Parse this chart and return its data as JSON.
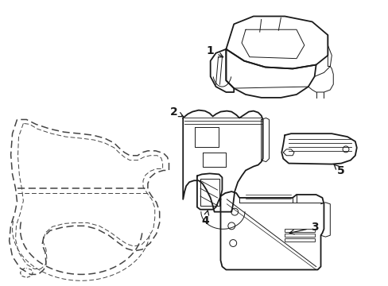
{
  "background_color": "#ffffff",
  "line_color": "#1a1a1a",
  "lw_main": 1.3,
  "lw_thin": 0.7,
  "lw_dash": 1.1,
  "fig_width": 4.89,
  "fig_height": 3.6,
  "dpi": 100
}
